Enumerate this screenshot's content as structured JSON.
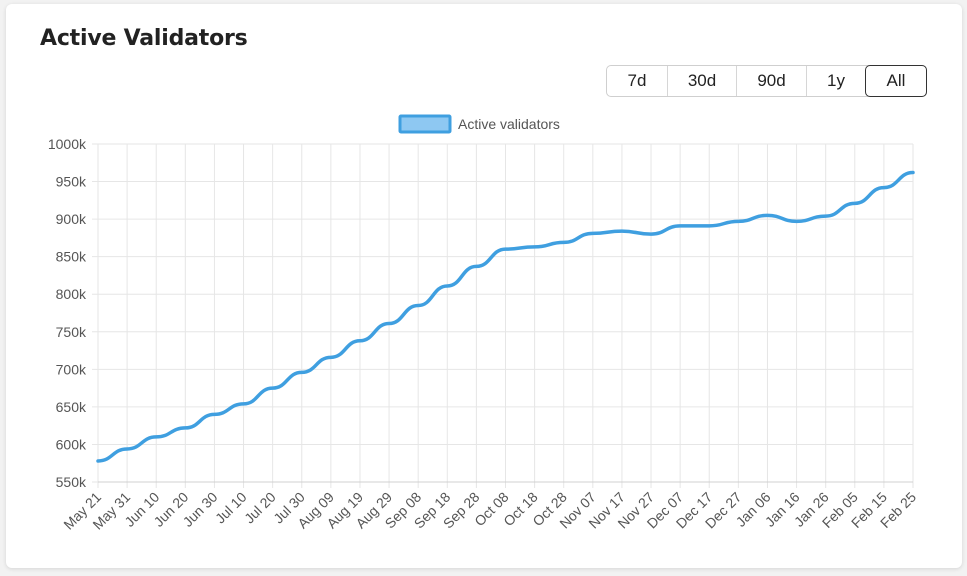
{
  "title": "Active Validators",
  "range_buttons": [
    {
      "label": "7d",
      "active": false
    },
    {
      "label": "30d",
      "active": false
    },
    {
      "label": "90d",
      "active": false
    },
    {
      "label": "1y",
      "active": false
    },
    {
      "label": "All",
      "active": true
    }
  ],
  "colors": {
    "line": "#3f9fe0",
    "legend_fill": "#8ec8f2",
    "grid": "#e6e6e6",
    "axis_text": "#555555"
  },
  "chart_data": {
    "type": "line",
    "title": "",
    "xlabel": "",
    "ylabel": "",
    "ylim": [
      550000,
      1000000
    ],
    "y_ticks": [
      550000,
      600000,
      650000,
      700000,
      750000,
      800000,
      850000,
      900000,
      950000,
      1000000
    ],
    "y_tick_labels": [
      "550k",
      "600k",
      "650k",
      "700k",
      "750k",
      "800k",
      "850k",
      "900k",
      "950k",
      "1000k"
    ],
    "x_tick_labels": [
      "May 21",
      "May 31",
      "Jun 10",
      "Jun 20",
      "Jun 30",
      "Jul 10",
      "Jul 20",
      "Jul 30",
      "Aug 09",
      "Aug 19",
      "Aug 29",
      "Sep 08",
      "Sep 18",
      "Sep 28",
      "Oct 08",
      "Oct 18",
      "Oct 28",
      "Nov 07",
      "Nov 17",
      "Nov 27",
      "Dec 07",
      "Dec 17",
      "Dec 27",
      "Jan 06",
      "Jan 16",
      "Jan 26",
      "Feb 05",
      "Feb 15",
      "Feb 25"
    ],
    "grid": true,
    "legend_position": "top-center",
    "series": [
      {
        "name": "Active validators",
        "x": [
          "May 21",
          "May 31",
          "Jun 10",
          "Jun 20",
          "Jun 30",
          "Jul 10",
          "Jul 20",
          "Jul 30",
          "Aug 09",
          "Aug 19",
          "Aug 29",
          "Sep 08",
          "Sep 18",
          "Sep 28",
          "Oct 08",
          "Oct 18",
          "Oct 28",
          "Nov 07",
          "Nov 17",
          "Nov 27",
          "Dec 07",
          "Dec 17",
          "Dec 27",
          "Jan 06",
          "Jan 16",
          "Jan 26",
          "Feb 05",
          "Feb 15",
          "Feb 25"
        ],
        "values": [
          578000,
          594000,
          610000,
          622000,
          640000,
          654000,
          675000,
          696000,
          716000,
          738000,
          761000,
          785000,
          811000,
          837000,
          860000,
          863000,
          869000,
          881000,
          884000,
          880000,
          891000,
          891000,
          897000,
          905000,
          897000,
          904000,
          921000,
          942000,
          962000
        ]
      }
    ]
  }
}
